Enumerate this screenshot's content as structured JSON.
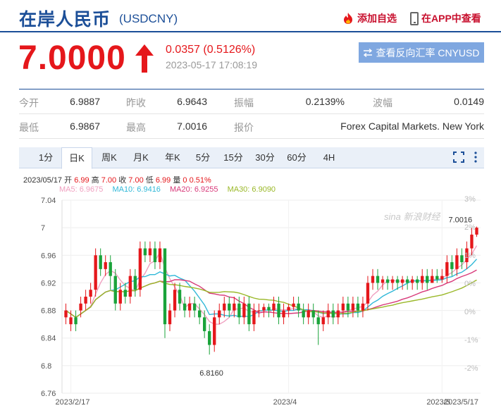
{
  "header": {
    "name": "在岸人民币",
    "code": "(USDCNY)",
    "add_favorite": "添加自选",
    "view_in_app": "在APP中查看"
  },
  "quote": {
    "price": "7.0000",
    "change": "0.0357 (0.5126%)",
    "time": "2023-05-17 17:08:19",
    "reverse_button": "查看反向汇率 CNYUSD"
  },
  "stats": {
    "row1": [
      {
        "label": "今开",
        "value": "6.9887"
      },
      {
        "label": "昨收",
        "value": "6.9643"
      },
      {
        "label": "振幅",
        "value": "0.2139%"
      },
      {
        "label": "波幅",
        "value": "0.0149"
      }
    ],
    "row2": [
      {
        "label": "最低",
        "value": "6.9867"
      },
      {
        "label": "最高",
        "value": "7.0016"
      },
      {
        "label": "报价",
        "value": "Forex Capital Markets. New York"
      }
    ]
  },
  "tabs": [
    "1分",
    "日K",
    "周K",
    "月K",
    "年K",
    "5分",
    "15分",
    "30分",
    "60分",
    "4H"
  ],
  "active_tab": "日K",
  "info": {
    "date": "2023/05/17",
    "open_label": "开",
    "open": "6.99",
    "high_label": "高",
    "high": "7.00",
    "close_label": "收",
    "close": "7.00",
    "low_label": "低",
    "low": "6.99",
    "vol_label": "量",
    "vol": "0",
    "pct": "0.51%"
  },
  "ma": {
    "ma5": "MA5: 6.9675",
    "ma10": "MA10: 6.9416",
    "ma20": "MA20: 6.9255",
    "ma30": "MA30: 6.9090"
  },
  "colors": {
    "up": "#e5171b",
    "down": "#1aa33a",
    "ma5": "#f0a0c0",
    "ma10": "#30b8d8",
    "ma20": "#d83a7a",
    "ma30": "#9ab828",
    "brand": "#1c4f98"
  },
  "chart_data": {
    "type": "candlestick",
    "y_ticks": [
      "7.04",
      "7",
      "6.96",
      "6.92",
      "6.88",
      "6.84",
      "6.8",
      "6.76"
    ],
    "y_values": [
      7.04,
      7.0,
      6.96,
      6.92,
      6.88,
      6.84,
      6.8,
      6.76
    ],
    "pct_ticks": [
      "3%",
      "2%",
      "1%",
      "0%",
      "0%",
      "-1%",
      "-2%"
    ],
    "x_labels": [
      "2023/2/17",
      "2023/4",
      "2023/5",
      "2023/5/17"
    ],
    "x_label_index": [
      1,
      45,
      76,
      88
    ],
    "ylim": [
      6.76,
      7.04
    ],
    "max_label": "7.0016",
    "min_label": "6.8160",
    "watermark": "sina 新浪财经",
    "candles": [
      [
        6.87,
        6.88,
        6.89,
        6.86
      ],
      [
        6.86,
        6.87,
        6.88,
        6.85
      ],
      [
        6.87,
        6.86,
        6.88,
        6.85
      ],
      [
        6.88,
        6.89,
        6.9,
        6.87
      ],
      [
        6.89,
        6.9,
        6.91,
        6.88
      ],
      [
        6.9,
        6.91,
        6.92,
        6.89
      ],
      [
        6.91,
        6.96,
        6.97,
        6.9
      ],
      [
        6.96,
        6.94,
        6.97,
        6.93
      ],
      [
        6.94,
        6.95,
        6.96,
        6.93
      ],
      [
        6.95,
        6.93,
        6.96,
        6.91
      ],
      [
        6.93,
        6.89,
        6.94,
        6.88
      ],
      [
        6.89,
        6.91,
        6.92,
        6.88
      ],
      [
        6.91,
        6.9,
        6.92,
        6.89
      ],
      [
        6.9,
        6.93,
        6.94,
        6.89
      ],
      [
        6.93,
        6.91,
        6.94,
        6.9
      ],
      [
        6.91,
        6.97,
        6.98,
        6.9
      ],
      [
        6.97,
        6.96,
        6.98,
        6.95
      ],
      [
        6.96,
        6.97,
        6.98,
        6.95
      ],
      [
        6.97,
        6.95,
        6.98,
        6.94
      ],
      [
        6.95,
        6.97,
        6.98,
        6.94
      ],
      [
        6.97,
        6.86,
        6.97,
        6.84
      ],
      [
        6.86,
        6.88,
        6.89,
        6.85
      ],
      [
        6.88,
        6.91,
        6.92,
        6.87
      ],
      [
        6.91,
        6.89,
        6.92,
        6.88
      ],
      [
        6.89,
        6.88,
        6.9,
        6.87
      ],
      [
        6.88,
        6.89,
        6.9,
        6.87
      ],
      [
        6.89,
        6.88,
        6.9,
        6.87
      ],
      [
        6.88,
        6.87,
        6.89,
        6.86
      ],
      [
        6.87,
        6.85,
        6.88,
        6.84
      ],
      [
        6.85,
        6.83,
        6.86,
        6.816
      ],
      [
        6.83,
        6.87,
        6.88,
        6.82
      ],
      [
        6.87,
        6.88,
        6.89,
        6.86
      ],
      [
        6.88,
        6.89,
        6.9,
        6.87
      ],
      [
        6.89,
        6.88,
        6.9,
        6.87
      ],
      [
        6.88,
        6.89,
        6.9,
        6.87
      ],
      [
        6.89,
        6.87,
        6.9,
        6.86
      ],
      [
        6.87,
        6.89,
        6.9,
        6.86
      ],
      [
        6.89,
        6.86,
        6.9,
        6.85
      ],
      [
        6.86,
        6.88,
        6.89,
        6.85
      ],
      [
        6.88,
        6.88,
        6.89,
        6.87
      ],
      [
        6.88,
        6.885,
        6.89,
        6.87
      ],
      [
        6.885,
        6.88,
        6.89,
        6.87
      ],
      [
        6.88,
        6.89,
        6.9,
        6.87
      ],
      [
        6.89,
        6.87,
        6.9,
        6.86
      ],
      [
        6.87,
        6.88,
        6.89,
        6.86
      ],
      [
        6.88,
        6.885,
        6.89,
        6.87
      ],
      [
        6.885,
        6.89,
        6.9,
        6.88
      ],
      [
        6.89,
        6.88,
        6.9,
        6.87
      ],
      [
        6.88,
        6.87,
        6.89,
        6.86
      ],
      [
        6.87,
        6.88,
        6.89,
        6.86
      ],
      [
        6.88,
        6.87,
        6.89,
        6.86
      ],
      [
        6.87,
        6.86,
        6.88,
        6.83
      ],
      [
        6.86,
        6.87,
        6.88,
        6.85
      ],
      [
        6.87,
        6.88,
        6.89,
        6.86
      ],
      [
        6.88,
        6.87,
        6.89,
        6.86
      ],
      [
        6.87,
        6.88,
        6.89,
        6.86
      ],
      [
        6.88,
        6.89,
        6.9,
        6.87
      ],
      [
        6.89,
        6.88,
        6.9,
        6.87
      ],
      [
        6.88,
        6.89,
        6.9,
        6.87
      ],
      [
        6.89,
        6.88,
        6.9,
        6.87
      ],
      [
        6.88,
        6.89,
        6.9,
        6.87
      ],
      [
        6.89,
        6.92,
        6.93,
        6.88
      ],
      [
        6.92,
        6.93,
        6.94,
        6.91
      ],
      [
        6.93,
        6.92,
        6.94,
        6.91
      ],
      [
        6.92,
        6.925,
        6.93,
        6.91
      ],
      [
        6.925,
        6.92,
        6.93,
        6.91
      ],
      [
        6.92,
        6.925,
        6.93,
        6.91
      ],
      [
        6.925,
        6.92,
        6.93,
        6.91
      ],
      [
        6.92,
        6.925,
        6.93,
        6.91
      ],
      [
        6.925,
        6.92,
        6.93,
        6.91
      ],
      [
        6.92,
        6.925,
        6.93,
        6.91
      ],
      [
        6.925,
        6.92,
        6.93,
        6.91
      ],
      [
        6.92,
        6.93,
        6.94,
        6.91
      ],
      [
        6.93,
        6.92,
        6.94,
        6.91
      ],
      [
        6.92,
        6.93,
        6.94,
        6.92
      ],
      [
        6.93,
        6.925,
        6.94,
        6.92
      ],
      [
        6.925,
        6.93,
        6.94,
        6.92
      ],
      [
        6.93,
        6.95,
        6.96,
        6.92
      ],
      [
        6.95,
        6.94,
        6.96,
        6.93
      ],
      [
        6.94,
        6.96,
        6.97,
        6.93
      ],
      [
        6.96,
        6.95,
        6.97,
        6.94
      ],
      [
        6.95,
        6.97,
        6.98,
        6.94
      ],
      [
        6.97,
        6.99,
        7.0,
        6.96
      ],
      [
        6.99,
        7.0,
        7.0016,
        6.9867
      ]
    ]
  }
}
